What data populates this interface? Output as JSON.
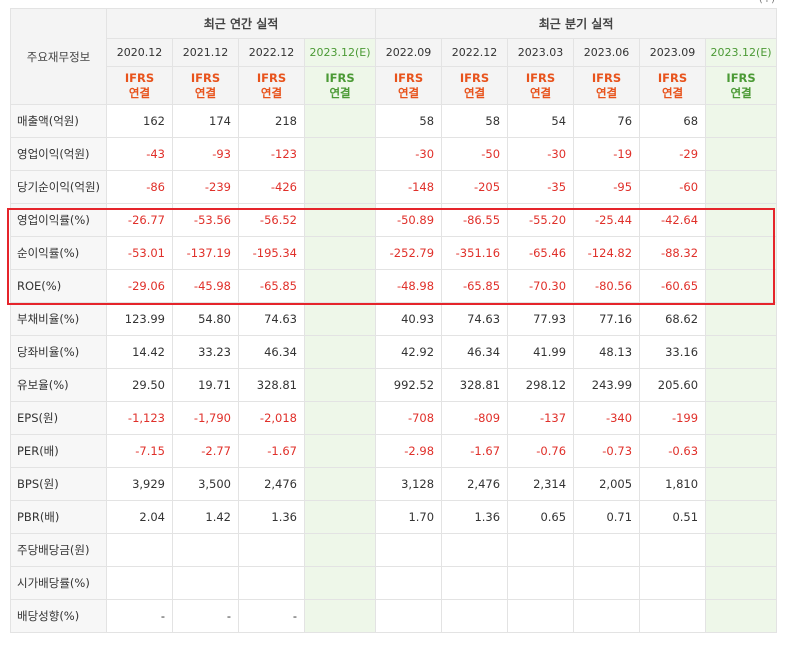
{
  "corner_text": "(+)",
  "header": {
    "row_label": "주요재무정보",
    "annual_title": "최근 연간 실적",
    "quarter_title": "최근 분기 실적"
  },
  "periods": [
    {
      "label": "2020.12",
      "basis": [
        "IFRS",
        "연결"
      ],
      "estimate": false
    },
    {
      "label": "2021.12",
      "basis": [
        "IFRS",
        "연결"
      ],
      "estimate": false
    },
    {
      "label": "2022.12",
      "basis": [
        "IFRS",
        "연결"
      ],
      "estimate": false
    },
    {
      "label": "2023.12(E)",
      "basis": [
        "IFRS",
        "연결"
      ],
      "estimate": true
    },
    {
      "label": "2022.09",
      "basis": [
        "IFRS",
        "연결"
      ],
      "estimate": false
    },
    {
      "label": "2022.12",
      "basis": [
        "IFRS",
        "연결"
      ],
      "estimate": false
    },
    {
      "label": "2023.03",
      "basis": [
        "IFRS",
        "연결"
      ],
      "estimate": false
    },
    {
      "label": "2023.06",
      "basis": [
        "IFRS",
        "연결"
      ],
      "estimate": false
    },
    {
      "label": "2023.09",
      "basis": [
        "IFRS",
        "연결"
      ],
      "estimate": false
    },
    {
      "label": "2023.12(E)",
      "basis": [
        "IFRS",
        "연결"
      ],
      "estimate": true
    }
  ],
  "rows": [
    {
      "label": "매출액(억원)",
      "values": [
        "162",
        "174",
        "218",
        "",
        "58",
        "58",
        "54",
        "76",
        "68",
        ""
      ]
    },
    {
      "label": "영업이익(억원)",
      "values": [
        "-43",
        "-93",
        "-123",
        "",
        "-30",
        "-50",
        "-30",
        "-19",
        "-29",
        ""
      ]
    },
    {
      "label": "당기순이익(억원)",
      "values": [
        "-86",
        "-239",
        "-426",
        "",
        "-148",
        "-205",
        "-35",
        "-95",
        "-60",
        ""
      ]
    },
    {
      "label": "영업이익률(%)",
      "values": [
        "-26.77",
        "-53.56",
        "-56.52",
        "",
        "-50.89",
        "-86.55",
        "-55.20",
        "-25.44",
        "-42.64",
        ""
      ]
    },
    {
      "label": "순이익률(%)",
      "values": [
        "-53.01",
        "-137.19",
        "-195.34",
        "",
        "-252.79",
        "-351.16",
        "-65.46",
        "-124.82",
        "-88.32",
        ""
      ]
    },
    {
      "label": "ROE(%)",
      "values": [
        "-29.06",
        "-45.98",
        "-65.85",
        "",
        "-48.98",
        "-65.85",
        "-70.30",
        "-80.56",
        "-60.65",
        ""
      ]
    },
    {
      "label": "부채비율(%)",
      "values": [
        "123.99",
        "54.80",
        "74.63",
        "",
        "40.93",
        "74.63",
        "77.93",
        "77.16",
        "68.62",
        ""
      ]
    },
    {
      "label": "당좌비율(%)",
      "values": [
        "14.42",
        "33.23",
        "46.34",
        "",
        "42.92",
        "46.34",
        "41.99",
        "48.13",
        "33.16",
        ""
      ]
    },
    {
      "label": "유보율(%)",
      "values": [
        "29.50",
        "19.71",
        "328.81",
        "",
        "992.52",
        "328.81",
        "298.12",
        "243.99",
        "205.60",
        ""
      ]
    },
    {
      "label": "EPS(원)",
      "values": [
        "-1,123",
        "-1,790",
        "-2,018",
        "",
        "-708",
        "-809",
        "-137",
        "-340",
        "-199",
        ""
      ]
    },
    {
      "label": "PER(배)",
      "values": [
        "-7.15",
        "-2.77",
        "-1.67",
        "",
        "-2.98",
        "-1.67",
        "-0.76",
        "-0.73",
        "-0.63",
        ""
      ]
    },
    {
      "label": "BPS(원)",
      "values": [
        "3,929",
        "3,500",
        "2,476",
        "",
        "3,128",
        "2,476",
        "2,314",
        "2,005",
        "1,810",
        ""
      ]
    },
    {
      "label": "PBR(배)",
      "values": [
        "2.04",
        "1.42",
        "1.36",
        "",
        "1.70",
        "1.36",
        "0.65",
        "0.71",
        "0.51",
        ""
      ]
    },
    {
      "label": "주당배당금(원)",
      "values": [
        "",
        "",
        "",
        "",
        "",
        "",
        "",
        "",
        "",
        ""
      ]
    },
    {
      "label": "시가배당률(%)",
      "values": [
        "",
        "",
        "",
        "",
        "",
        "",
        "",
        "",
        "",
        ""
      ]
    },
    {
      "label": "배당성향(%)",
      "values": [
        "-",
        "-",
        "-",
        "",
        "",
        "",
        "",
        "",
        "",
        ""
      ]
    }
  ],
  "colors": {
    "negative": "#e0302a",
    "ifrs": "#e8531c",
    "estimate_text": "#4b9a35",
    "estimate_bg": "#eef7e9",
    "highlight_border": "#e5242b"
  }
}
